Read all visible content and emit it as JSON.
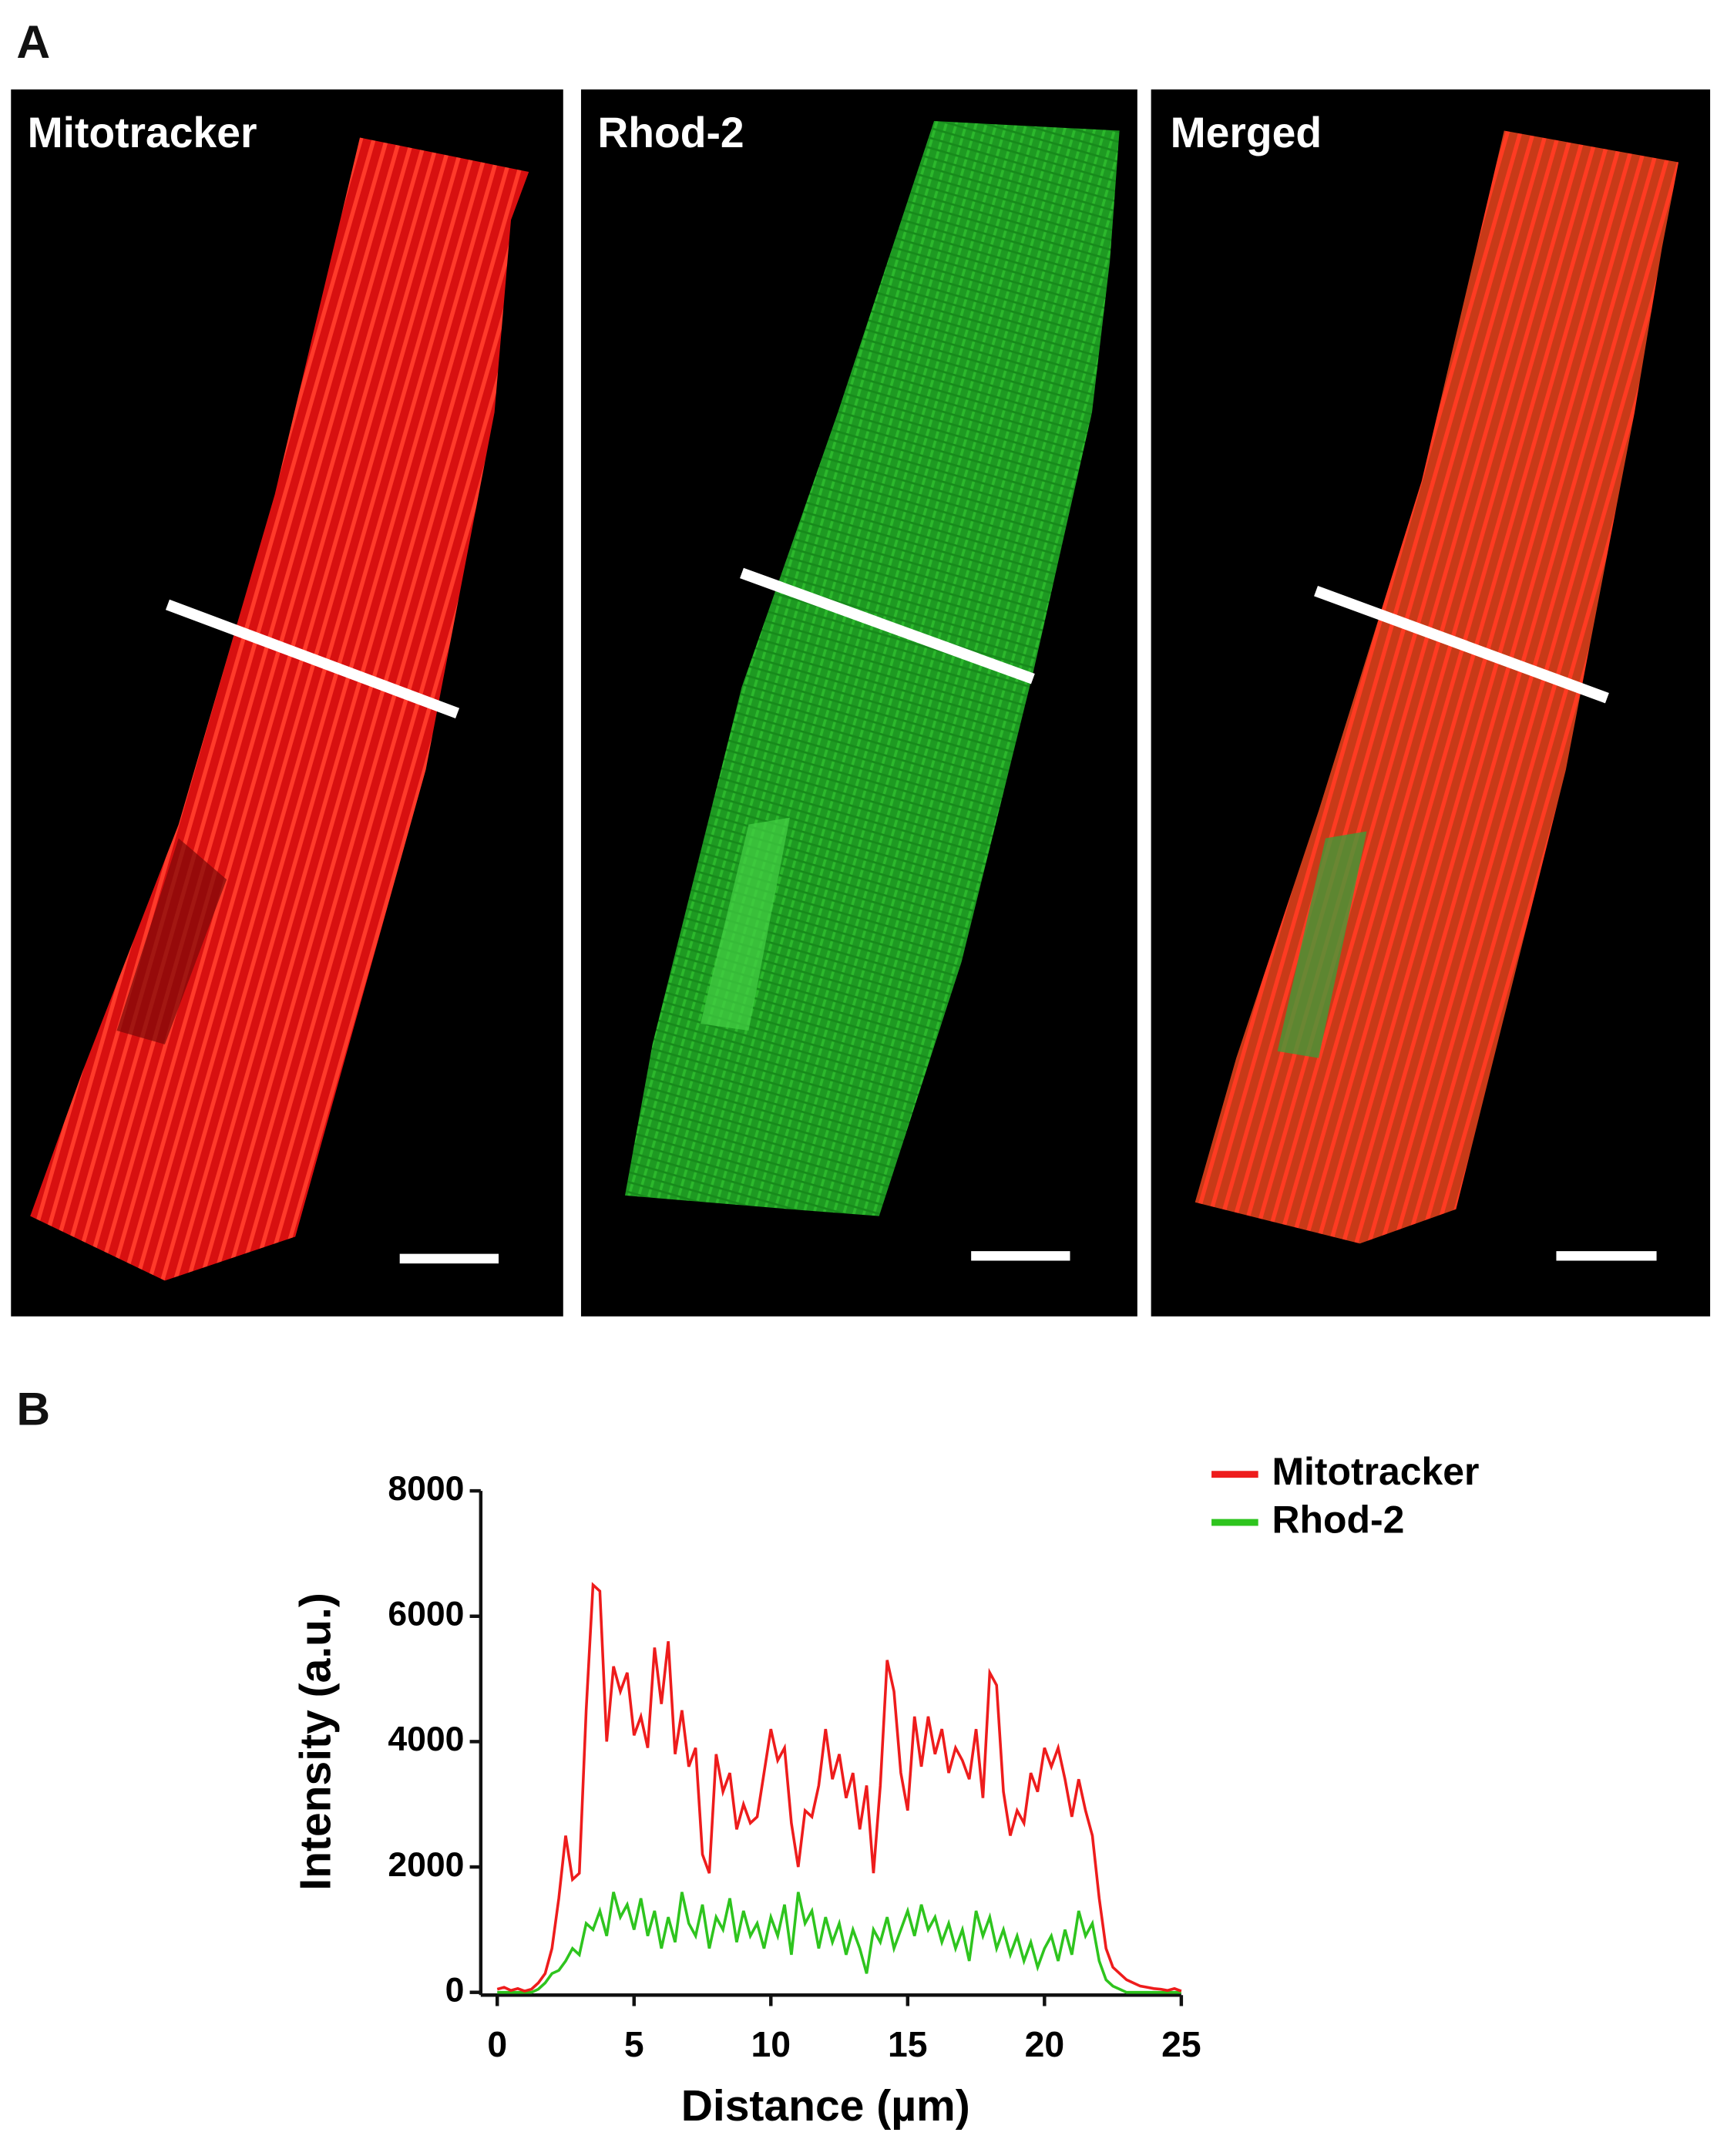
{
  "figure": {
    "panel_labels": [
      "A",
      "B"
    ],
    "image_titles": [
      "Mitotracker",
      "Rhod-2",
      "Merged"
    ]
  },
  "chart_data": {
    "type": "line",
    "xlabel": "Distance (µm)",
    "ylabel": "Intensity (a.u.)",
    "x": [
      0,
      0.25,
      0.5,
      0.75,
      1,
      1.25,
      1.5,
      1.75,
      2,
      2.25,
      2.5,
      2.75,
      3,
      3.25,
      3.5,
      3.75,
      4,
      4.25,
      4.5,
      4.75,
      5,
      5.25,
      5.5,
      5.75,
      6,
      6.25,
      6.5,
      6.75,
      7,
      7.25,
      7.5,
      7.75,
      8,
      8.25,
      8.5,
      8.75,
      9,
      9.25,
      9.5,
      9.75,
      10,
      10.25,
      10.5,
      10.75,
      11,
      11.25,
      11.5,
      11.75,
      12,
      12.25,
      12.5,
      12.75,
      13,
      13.25,
      13.5,
      13.75,
      14,
      14.25,
      14.5,
      14.75,
      15,
      15.25,
      15.5,
      15.75,
      16,
      16.25,
      16.5,
      16.75,
      17,
      17.25,
      17.5,
      17.75,
      18,
      18.25,
      18.5,
      18.75,
      19,
      19.25,
      19.5,
      19.75,
      20,
      20.25,
      20.5,
      20.75,
      21,
      21.25,
      21.5,
      21.75,
      22,
      22.25,
      22.5,
      22.75,
      23,
      23.25,
      23.5,
      23.75,
      24,
      24.25,
      24.5,
      24.75,
      25
    ],
    "series": [
      {
        "name": "Mitotracker",
        "color": "#ee1c1c",
        "values": [
          50,
          80,
          30,
          60,
          20,
          50,
          150,
          300,
          700,
          1500,
          2500,
          1800,
          1900,
          4500,
          6500,
          6400,
          4000,
          5200,
          4800,
          5100,
          4100,
          4400,
          3900,
          5500,
          4600,
          5600,
          3800,
          4500,
          3600,
          3900,
          2200,
          1900,
          3800,
          3200,
          3500,
          2600,
          3000,
          2700,
          2800,
          3500,
          4200,
          3700,
          3900,
          2700,
          2000,
          2900,
          2800,
          3300,
          4200,
          3400,
          3800,
          3100,
          3500,
          2600,
          3300,
          1900,
          3300,
          5300,
          4800,
          3500,
          2900,
          4400,
          3600,
          4400,
          3800,
          4200,
          3500,
          3900,
          3700,
          3400,
          4200,
          3100,
          5100,
          4900,
          3200,
          2500,
          2900,
          2700,
          3500,
          3200,
          3900,
          3600,
          3900,
          3400,
          2800,
          3400,
          2900,
          2500,
          1500,
          700,
          400,
          300,
          200,
          150,
          100,
          80,
          60,
          50,
          30,
          60,
          20
        ]
      },
      {
        "name": "Rhod-2",
        "color": "#2ec41e",
        "values": [
          0,
          0,
          0,
          0,
          0,
          0,
          50,
          150,
          300,
          350,
          500,
          700,
          600,
          1100,
          1000,
          1300,
          900,
          1600,
          1200,
          1400,
          1000,
          1500,
          900,
          1300,
          700,
          1200,
          800,
          1600,
          1100,
          900,
          1400,
          700,
          1200,
          1000,
          1500,
          800,
          1300,
          900,
          1100,
          700,
          1200,
          900,
          1400,
          600,
          1600,
          1100,
          1300,
          700,
          1200,
          800,
          1100,
          600,
          1000,
          700,
          300,
          1000,
          800,
          1200,
          700,
          1000,
          1300,
          900,
          1400,
          1000,
          1200,
          800,
          1100,
          700,
          1000,
          500,
          1300,
          900,
          1200,
          700,
          1000,
          600,
          900,
          500,
          800,
          400,
          700,
          900,
          500,
          1000,
          600,
          1300,
          900,
          1100,
          500,
          200,
          100,
          50,
          0,
          0,
          0,
          0,
          0,
          0,
          0,
          0,
          0
        ]
      }
    ],
    "xlim": [
      0,
      25
    ],
    "ylim": [
      0,
      8000
    ],
    "xticks": [
      0,
      5,
      10,
      15,
      20,
      25
    ],
    "yticks": [
      0,
      2000,
      4000,
      6000,
      8000
    ],
    "grid": false,
    "legend": "upper right"
  }
}
